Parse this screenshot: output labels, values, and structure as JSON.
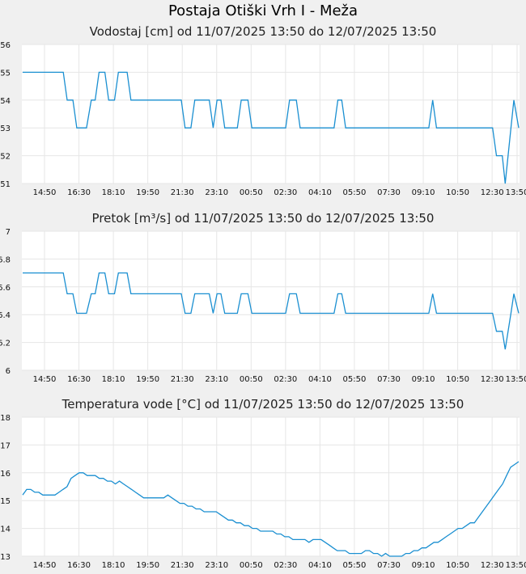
{
  "title": "Postaja Otiški Vrh I - Meža",
  "colors": {
    "line": "#1a8fd1",
    "plot_bg": "#ffffff",
    "grid": "#e6e6e6",
    "page_bg": "#f0f0f0"
  },
  "chart_data": [
    {
      "type": "line",
      "title": "Vodostaj [cm] od 11/07/2025 13:50 do 12/07/2025 13:50",
      "xticks": [
        "14:50",
        "16:30",
        "18:10",
        "19:50",
        "21:30",
        "23:10",
        "00:50",
        "02:30",
        "04:10",
        "05:50",
        "07:30",
        "09:10",
        "10:50",
        "12:30",
        "13:50"
      ],
      "xlabel": "",
      "ylabel": "",
      "ylim": [
        51,
        56
      ],
      "yticks": [
        "51",
        "52",
        "53",
        "54",
        "55",
        "56"
      ],
      "grid": true,
      "series": [
        {
          "points": [
            [
              0,
              55
            ],
            [
              4.2,
              55
            ],
            [
              4.6,
              54
            ],
            [
              5.2,
              54
            ],
            [
              5.6,
              53
            ],
            [
              6.6,
              53
            ],
            [
              7.1,
              54
            ],
            [
              7.5,
              54
            ],
            [
              7.9,
              55
            ],
            [
              8.5,
              55
            ],
            [
              8.9,
              54
            ],
            [
              9.5,
              54
            ],
            [
              9.9,
              55
            ],
            [
              10.8,
              55
            ],
            [
              11.2,
              54
            ],
            [
              16.4,
              54
            ],
            [
              16.8,
              53
            ],
            [
              17.4,
              53
            ],
            [
              17.8,
              54
            ],
            [
              19.3,
              54
            ],
            [
              19.7,
              53
            ],
            [
              20.1,
              54
            ],
            [
              20.5,
              54
            ],
            [
              20.9,
              53
            ],
            [
              22.2,
              53
            ],
            [
              22.6,
              54
            ],
            [
              23.3,
              54
            ],
            [
              23.7,
              53
            ],
            [
              27.2,
              53
            ],
            [
              27.6,
              54
            ],
            [
              28.3,
              54
            ],
            [
              28.7,
              53
            ],
            [
              32.2,
              53
            ],
            [
              32.6,
              54
            ],
            [
              33.0,
              54
            ],
            [
              33.4,
              53
            ],
            [
              42.0,
              53
            ],
            [
              42.4,
              54
            ],
            [
              42.8,
              53
            ],
            [
              48.6,
              53
            ],
            [
              49.0,
              52
            ],
            [
              49.6,
              52
            ],
            [
              49.9,
              51
            ],
            [
              50.5,
              53
            ],
            [
              50.8,
              54
            ],
            [
              51.3,
              53
            ]
          ]
        }
      ]
    },
    {
      "type": "line",
      "title": "Pretok [m³/s] od 11/07/2025 13:50 do 12/07/2025 13:50",
      "xticks": [
        "14:50",
        "16:30",
        "18:10",
        "19:50",
        "21:30",
        "23:10",
        "00:50",
        "02:30",
        "04:10",
        "05:50",
        "07:30",
        "09:10",
        "10:50",
        "12:30",
        "13:50"
      ],
      "xlabel": "",
      "ylabel": "",
      "ylim": [
        6,
        7
      ],
      "yticks": [
        "6",
        "6.2",
        "6.4",
        "6.6",
        "6.8",
        "7"
      ],
      "grid": true,
      "series": [
        {
          "points": [
            [
              0,
              6.7
            ],
            [
              4.2,
              6.7
            ],
            [
              4.6,
              6.55
            ],
            [
              5.2,
              6.55
            ],
            [
              5.6,
              6.41
            ],
            [
              6.6,
              6.41
            ],
            [
              7.1,
              6.55
            ],
            [
              7.5,
              6.55
            ],
            [
              7.9,
              6.7
            ],
            [
              8.5,
              6.7
            ],
            [
              8.9,
              6.55
            ],
            [
              9.5,
              6.55
            ],
            [
              9.9,
              6.7
            ],
            [
              10.8,
              6.7
            ],
            [
              11.2,
              6.55
            ],
            [
              16.4,
              6.55
            ],
            [
              16.8,
              6.41
            ],
            [
              17.4,
              6.41
            ],
            [
              17.8,
              6.55
            ],
            [
              19.3,
              6.55
            ],
            [
              19.7,
              6.41
            ],
            [
              20.1,
              6.55
            ],
            [
              20.5,
              6.55
            ],
            [
              20.9,
              6.41
            ],
            [
              22.2,
              6.41
            ],
            [
              22.6,
              6.55
            ],
            [
              23.3,
              6.55
            ],
            [
              23.7,
              6.41
            ],
            [
              27.2,
              6.41
            ],
            [
              27.6,
              6.55
            ],
            [
              28.3,
              6.55
            ],
            [
              28.7,
              6.41
            ],
            [
              32.2,
              6.41
            ],
            [
              32.6,
              6.55
            ],
            [
              33.0,
              6.55
            ],
            [
              33.4,
              6.41
            ],
            [
              42.0,
              6.41
            ],
            [
              42.4,
              6.55
            ],
            [
              42.8,
              6.41
            ],
            [
              48.6,
              6.41
            ],
            [
              49.0,
              6.28
            ],
            [
              49.6,
              6.28
            ],
            [
              49.9,
              6.15
            ],
            [
              50.5,
              6.41
            ],
            [
              50.8,
              6.55
            ],
            [
              51.3,
              6.41
            ]
          ]
        }
      ]
    },
    {
      "type": "line",
      "title": "Temperatura vode [°C] od 11/07/2025 13:50 do 12/07/2025 13:50",
      "xticks": [
        "14:50",
        "16:30",
        "18:10",
        "19:50",
        "21:30",
        "23:10",
        "00:50",
        "02:30",
        "04:10",
        "05:50",
        "07:30",
        "09:10",
        "10:50",
        "12:30",
        "13:50"
      ],
      "xlabel": "",
      "ylabel": "",
      "ylim": [
        13,
        18
      ],
      "yticks": [
        "13",
        "14",
        "15",
        "16",
        "17",
        "18"
      ],
      "grid": true,
      "series": [
        {
          "points": [
            [
              0,
              15.2
            ],
            [
              0.5,
              15.4
            ],
            [
              1,
              15.4
            ],
            [
              1.5,
              15.3
            ],
            [
              2,
              15.3
            ],
            [
              2.5,
              15.2
            ],
            [
              3.5,
              15.2
            ],
            [
              4,
              15.2
            ],
            [
              4.5,
              15.3
            ],
            [
              5,
              15.4
            ],
            [
              5.5,
              15.5
            ],
            [
              6,
              15.8
            ],
            [
              6.5,
              15.9
            ],
            [
              7,
              16.0
            ],
            [
              7.5,
              16.0
            ],
            [
              8,
              15.9
            ],
            [
              9,
              15.9
            ],
            [
              9.5,
              15.8
            ],
            [
              10,
              15.8
            ],
            [
              10.5,
              15.7
            ],
            [
              11,
              15.7
            ],
            [
              11.5,
              15.6
            ],
            [
              12,
              15.7
            ],
            [
              12.5,
              15.6
            ],
            [
              13,
              15.5
            ],
            [
              13.5,
              15.4
            ],
            [
              14,
              15.3
            ],
            [
              14.5,
              15.2
            ],
            [
              15,
              15.1
            ],
            [
              17.5,
              15.1
            ],
            [
              18,
              15.2
            ],
            [
              18.5,
              15.1
            ],
            [
              19,
              15.0
            ],
            [
              19.5,
              14.9
            ],
            [
              20,
              14.9
            ],
            [
              20.5,
              14.8
            ],
            [
              21,
              14.8
            ],
            [
              21.5,
              14.7
            ],
            [
              22,
              14.7
            ],
            [
              22.5,
              14.6
            ],
            [
              24,
              14.6
            ],
            [
              24.5,
              14.5
            ],
            [
              25,
              14.4
            ],
            [
              25.5,
              14.3
            ],
            [
              26,
              14.3
            ],
            [
              26.5,
              14.2
            ],
            [
              27,
              14.2
            ],
            [
              27.5,
              14.1
            ],
            [
              28,
              14.1
            ],
            [
              28.5,
              14.0
            ],
            [
              29,
              14.0
            ],
            [
              29.5,
              13.9
            ],
            [
              31,
              13.9
            ],
            [
              31.5,
              13.8
            ],
            [
              32,
              13.8
            ],
            [
              32.5,
              13.7
            ],
            [
              33,
              13.7
            ],
            [
              33.5,
              13.6
            ],
            [
              35,
              13.6
            ],
            [
              35.5,
              13.5
            ],
            [
              36,
              13.6
            ],
            [
              37,
              13.6
            ],
            [
              37.5,
              13.5
            ],
            [
              38,
              13.4
            ],
            [
              38.5,
              13.3
            ],
            [
              39,
              13.2
            ],
            [
              40,
              13.2
            ],
            [
              40.5,
              13.1
            ],
            [
              42,
              13.1
            ],
            [
              42.5,
              13.2
            ],
            [
              43,
              13.2
            ],
            [
              43.5,
              13.1
            ],
            [
              44,
              13.1
            ],
            [
              44.5,
              13.0
            ],
            [
              45,
              13.1
            ],
            [
              45.5,
              13.0
            ],
            [
              46,
              13.0
            ],
            [
              46.5,
              13.0
            ],
            [
              47,
              13.0
            ],
            [
              47.5,
              13.1
            ],
            [
              48,
              13.1
            ],
            [
              48.5,
              13.2
            ],
            [
              49,
              13.2
            ],
            [
              49.5,
              13.3
            ],
            [
              50,
              13.3
            ],
            [
              50.5,
              13.4
            ],
            [
              51,
              13.5
            ],
            [
              51.5,
              13.5
            ],
            [
              52,
              13.6
            ],
            [
              52.5,
              13.7
            ],
            [
              53,
              13.8
            ],
            [
              53.5,
              13.9
            ],
            [
              54,
              14.0
            ],
            [
              54.5,
              14.0
            ],
            [
              55,
              14.1
            ],
            [
              55.5,
              14.2
            ],
            [
              56,
              14.2
            ],
            [
              56.5,
              14.4
            ],
            [
              57,
              14.6
            ],
            [
              57.5,
              14.8
            ],
            [
              58,
              15.0
            ],
            [
              58.5,
              15.2
            ],
            [
              59,
              15.4
            ],
            [
              59.5,
              15.6
            ],
            [
              60,
              15.9
            ],
            [
              60.5,
              16.2
            ],
            [
              61,
              16.3
            ],
            [
              61.5,
              16.4
            ]
          ]
        }
      ]
    }
  ]
}
